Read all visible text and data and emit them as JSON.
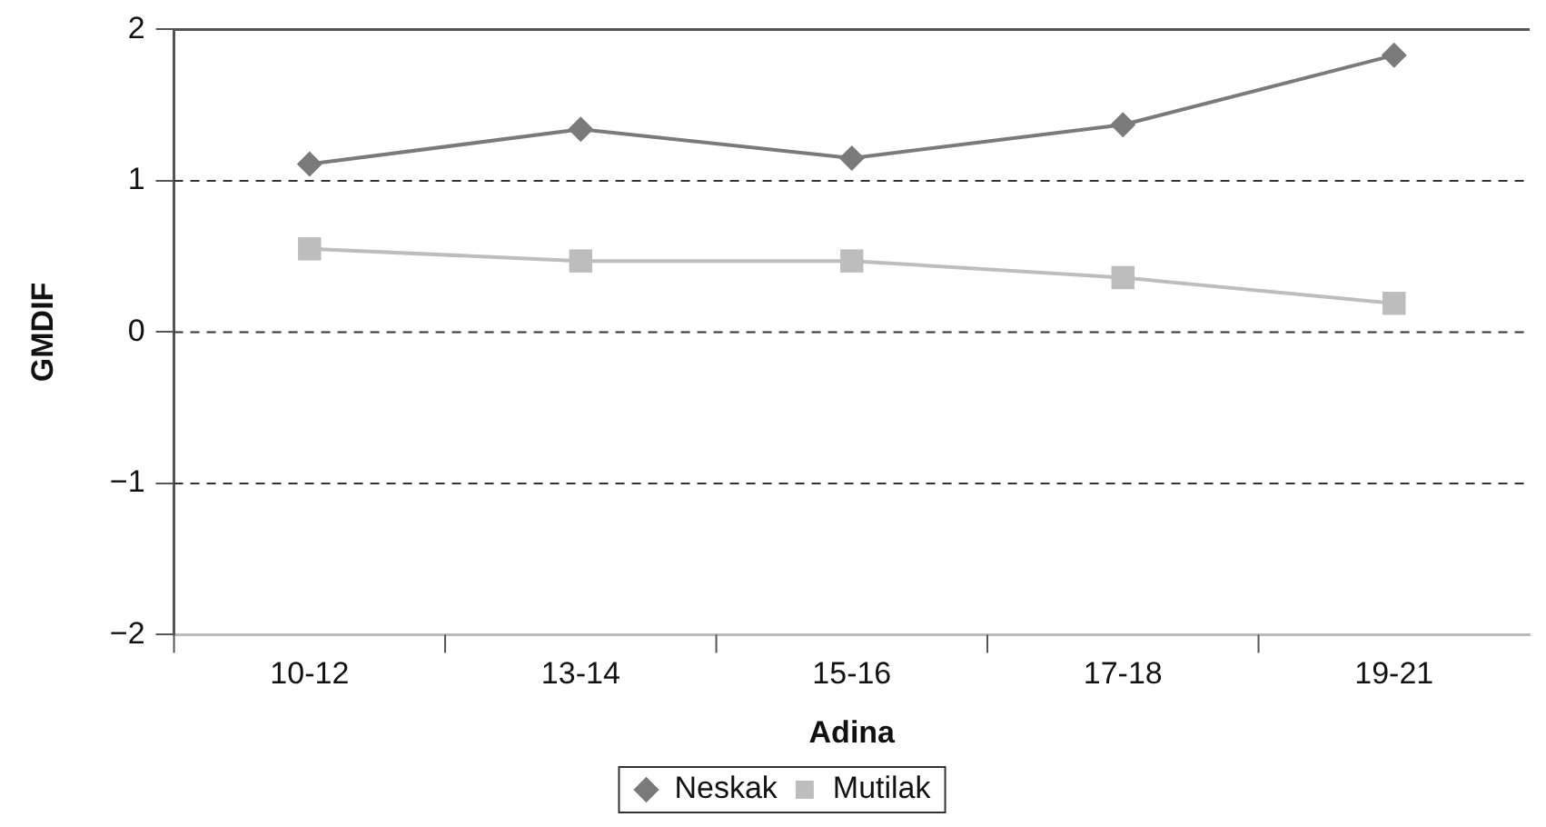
{
  "chart_data": {
    "type": "line",
    "xlabel": "Adina",
    "ylabel": "GMDIF",
    "categories": [
      "10-12",
      "13-14",
      "15-16",
      "17-18",
      "19-21"
    ],
    "series": [
      {
        "name": "Neskak",
        "color": "#7a7a7a",
        "marker": "diamond",
        "values": [
          1.11,
          1.34,
          1.15,
          1.37,
          1.83
        ]
      },
      {
        "name": "Mutilak",
        "color": "#bdbdbd",
        "marker": "square",
        "values": [
          0.55,
          0.47,
          0.47,
          0.36,
          0.19
        ]
      }
    ],
    "ylim": [
      -2,
      2
    ],
    "yticks": [
      {
        "value": -2,
        "label": "−2"
      },
      {
        "value": -1,
        "label": "−1"
      },
      0,
      1,
      2
    ],
    "grid": "y",
    "legend": "bottom",
    "line_style": "solid"
  }
}
